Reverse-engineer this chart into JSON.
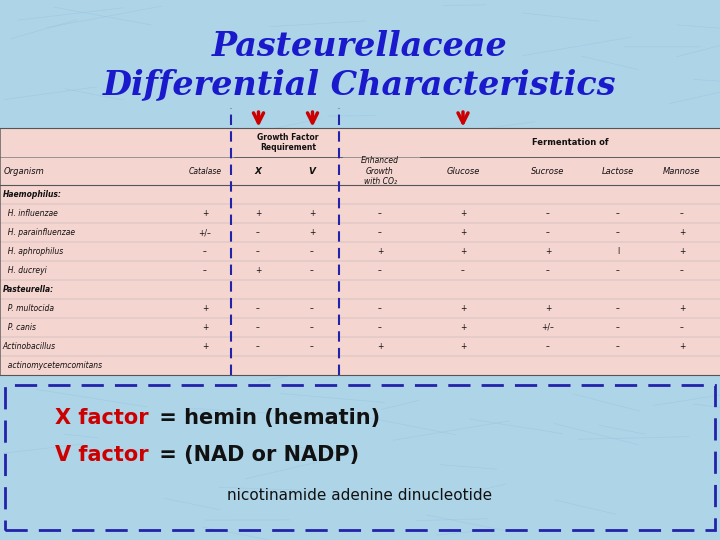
{
  "title_line1": "Pasteurellaceae",
  "title_line2": "Differential Characteristics",
  "title_color": "#1a1acc",
  "bg_color": "#aed4e8",
  "table_bg": "#f5d5d0",
  "table_border_color": "#2222aa",
  "bottom_border_color": "#2222aa",
  "group_header1": "Growth Factor\nRequirement",
  "group_header2": "Fermentation of",
  "col_labels": [
    "Organism",
    "Catalase",
    "X",
    "V",
    "Enhanced\nGrowth\nwith CO₂",
    "Glucose",
    "Sucrose",
    "Lactose",
    "Mannose"
  ],
  "rows": [
    [
      "Haemophilus:",
      "",
      "",
      "",
      "",
      "",
      "",
      "",
      ""
    ],
    [
      "  H. influenzae",
      "+",
      "+",
      "+",
      "–",
      "+",
      "–",
      "–",
      "–"
    ],
    [
      "  H. parainfluenzae",
      "+/–",
      "–",
      "+",
      "–",
      "+",
      "–",
      "–",
      "+"
    ],
    [
      "  H. aphrophilus",
      "–",
      "–",
      "–",
      "+",
      "+",
      "+",
      "l",
      "+"
    ],
    [
      "  H. ducreyi",
      "–",
      "+",
      "–",
      "–",
      "–",
      "–",
      "–",
      "–"
    ],
    [
      "Pasteurella:",
      "",
      "",
      "",
      "",
      "",
      "",
      "",
      ""
    ],
    [
      "  P. multocida",
      "+",
      "–",
      "–",
      "–",
      "+",
      "+",
      "–",
      "+"
    ],
    [
      "  P. canis",
      "+",
      "–",
      "–",
      "–",
      "+",
      "+/–",
      "–",
      "–"
    ],
    [
      "Actinobacillus",
      "+",
      "–",
      "–",
      "+",
      "+",
      "–",
      "–",
      "+"
    ],
    [
      "  actinomycetemcomitans",
      "",
      "",
      "",
      "",
      "",
      "",
      "",
      ""
    ]
  ],
  "bottom_text_x_red": "X factor",
  "bottom_text_x_black": " = hemin (hematin)",
  "bottom_text_v_red": "V factor",
  "bottom_text_v_black": " = (NAD or NADP)",
  "bottom_text_sub": "nicotinamide adenine dinucleotide",
  "arrow_color": "#cc0000",
  "dashed_color": "#2222aa"
}
